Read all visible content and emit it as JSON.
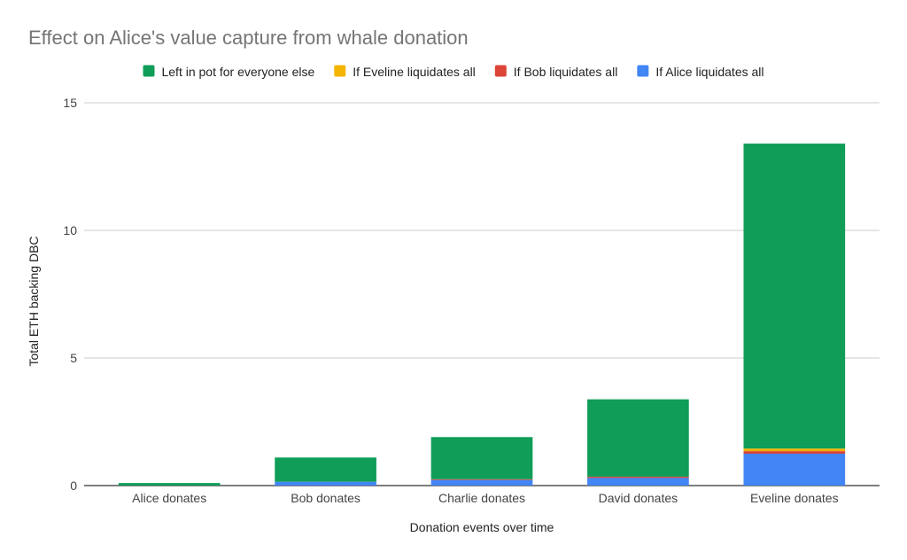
{
  "chart_data": {
    "type": "bar",
    "stacked": true,
    "title": "Effect on Alice's value capture from whale donation",
    "xlabel": "Donation events over time",
    "ylabel": "Total ETH backing DBC",
    "ylim": [
      0,
      15
    ],
    "yticks": [
      0,
      5,
      10,
      15
    ],
    "grid": true,
    "legend_position": "top",
    "categories": [
      "Alice donates",
      "Bob donates",
      "Charlie donates",
      "David donates",
      "Eveline donates"
    ],
    "series": [
      {
        "name": "If Alice liquidates all",
        "color": "#4285f4",
        "values": [
          0.0,
          0.15,
          0.22,
          0.3,
          1.25
        ]
      },
      {
        "name": "If Bob liquidates all",
        "color": "#db4437",
        "values": [
          0.0,
          0.0,
          0.03,
          0.05,
          0.1
        ]
      },
      {
        "name": "If Eveline liquidates all",
        "color": "#f4b400",
        "values": [
          0.0,
          0.0,
          0.0,
          0.0,
          0.1
        ]
      },
      {
        "name": "Left in pot for everyone else",
        "color": "#0f9d58",
        "values": [
          0.1,
          0.95,
          1.65,
          3.03,
          11.95
        ]
      }
    ],
    "legend_order": [
      "Left in pot for everyone else",
      "If Eveline liquidates all",
      "If Bob liquidates all",
      "If Alice liquidates all"
    ]
  }
}
